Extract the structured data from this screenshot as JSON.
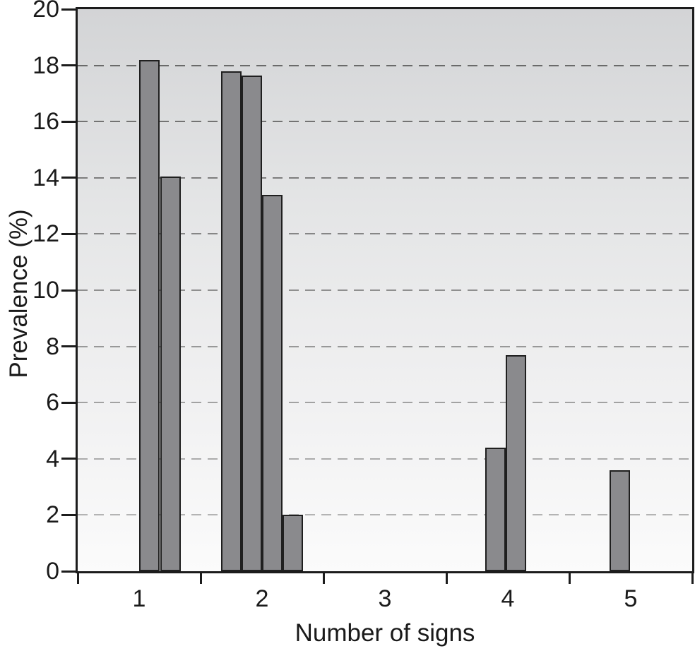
{
  "chart_data": {
    "type": "bar",
    "title": "",
    "xlabel": "Number of signs",
    "ylabel": "Prevalence (%)",
    "ylim": [
      0,
      20
    ],
    "ytick_step": 2,
    "ytick_labels": [
      "0",
      "2",
      "4",
      "6",
      "8",
      "10",
      "12",
      "14",
      "16",
      "18",
      "20"
    ],
    "grid": "horizontal dashed lines at every 2 units",
    "legend": "none",
    "categories": [
      "1",
      "2",
      "3",
      "4",
      "5"
    ],
    "groups": [
      {
        "category": "1",
        "bars": [
          {
            "value": 18.2,
            "slot": 0
          },
          {
            "value": 14.05,
            "slot": 1.02
          }
        ]
      },
      {
        "category": "2",
        "bars": [
          {
            "value": 17.8,
            "slot": -2
          },
          {
            "value": 17.65,
            "slot": -1
          },
          {
            "value": 13.4,
            "slot": 0
          },
          {
            "value": 2.0,
            "slot": 1
          }
        ]
      },
      {
        "category": "3",
        "bars": []
      },
      {
        "category": "4",
        "bars": [
          {
            "value": 4.4,
            "slot": -1.1
          },
          {
            "value": 7.7,
            "slot": -0.1
          }
        ]
      },
      {
        "category": "5",
        "bars": [
          {
            "value": 3.6,
            "slot": -1.05
          }
        ]
      }
    ],
    "colors": {
      "bar_fill": "#8a8a8d",
      "bar_border": "#1f1f1f",
      "axis": "#1c1c1c",
      "plot_bg_top": "#d3d4d6",
      "plot_bg_bottom": "#fbfbfb",
      "gridline_top": "#6a6a6a",
      "gridline_bottom": "#b4b4b4"
    }
  }
}
